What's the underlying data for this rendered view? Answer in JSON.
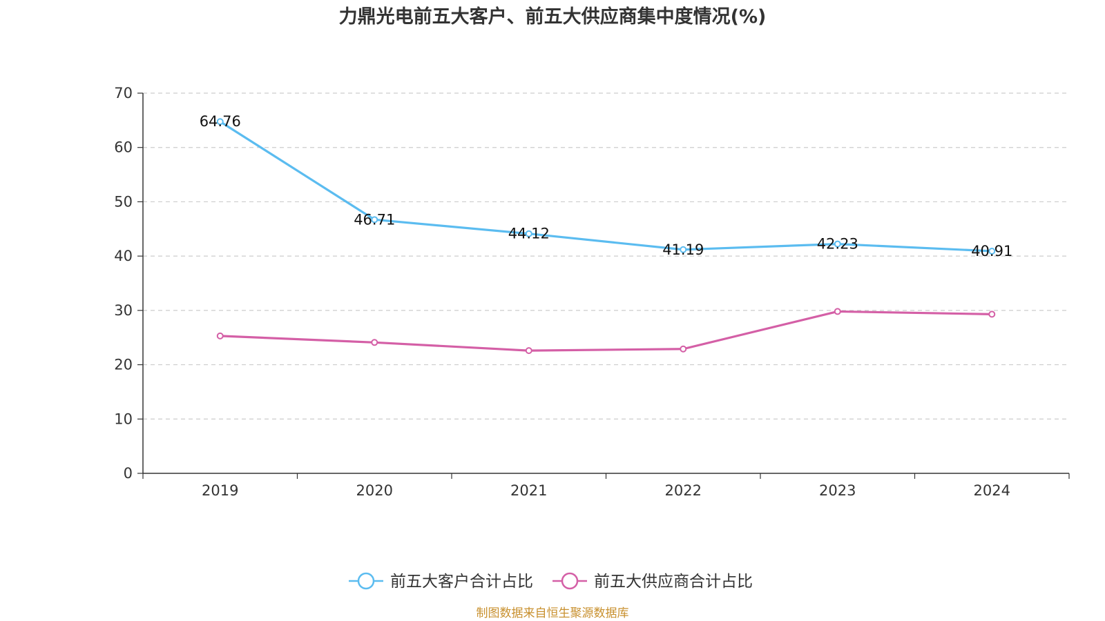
{
  "chart_data": {
    "type": "line",
    "title": "力鼎光电前五大客户、前五大供应商集中度情况(%)",
    "categories": [
      "2019",
      "2020",
      "2021",
      "2022",
      "2023",
      "2024"
    ],
    "ylim": [
      0,
      70
    ],
    "yticks": [
      "0",
      "10",
      "20",
      "30",
      "40",
      "50",
      "60",
      "70"
    ],
    "grid": true,
    "legend_position": "bottom-center",
    "series": [
      {
        "name": "前五大客户合计占比",
        "color": "#5bbcf0",
        "values": [
          64.76,
          46.71,
          44.12,
          41.19,
          42.23,
          40.91
        ],
        "labels": [
          "64.76",
          "46.71",
          "44.12",
          "41.19",
          "42.23",
          "40.91"
        ]
      },
      {
        "name": "前五大供应商合计占比",
        "color": "#d45fa6",
        "values": [
          25.3,
          24.1,
          22.6,
          22.9,
          29.8,
          29.3
        ],
        "labels": []
      }
    ]
  },
  "source_text": "制图数据来自恒生聚源数据库",
  "source_color": "#c8902e"
}
